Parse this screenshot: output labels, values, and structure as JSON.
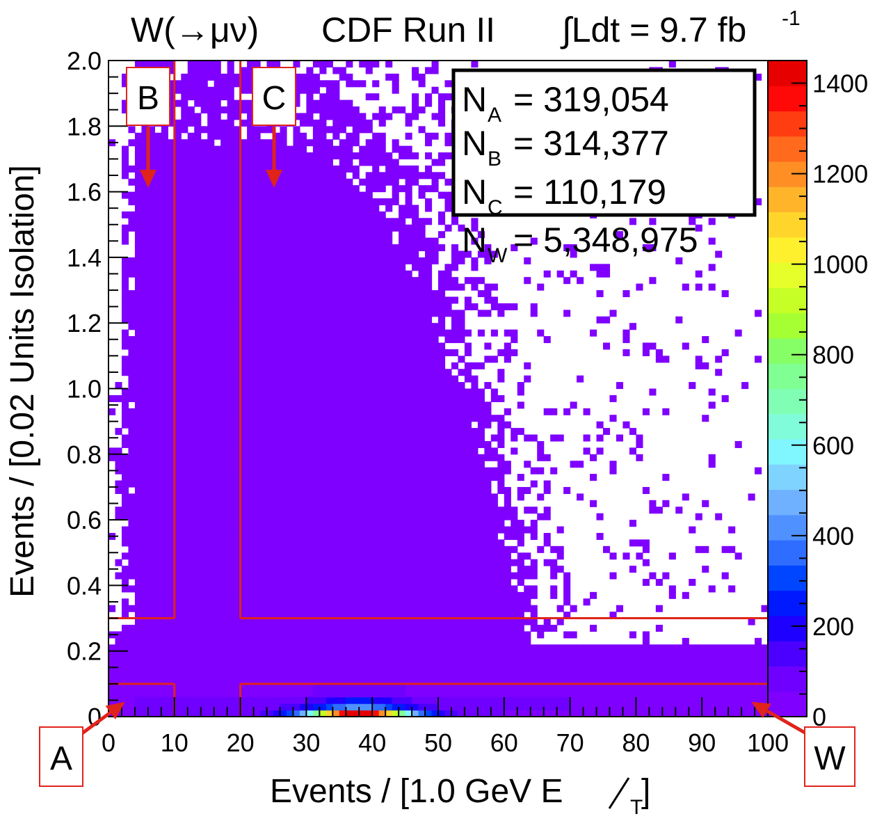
{
  "chart_data": {
    "type": "heatmap",
    "title": {
      "process": "W(→μν)",
      "experiment": "CDF Run II",
      "luminosity_lhs": "∫Ldt = 9.7 fb",
      "luminosity_exp": "-1"
    },
    "xlabel": "Events / [1.0 GeV E",
    "xlabel_sub": "T",
    "xlabel_close": "]",
    "ylabel": "Events / [0.02 Units Isolation]",
    "xlim": [
      0,
      100
    ],
    "ylim": [
      0,
      2.0
    ],
    "x_ticks": [
      {
        "value": 0,
        "label": "0"
      },
      {
        "value": 10,
        "label": "10"
      },
      {
        "value": 20,
        "label": "20"
      },
      {
        "value": 30,
        "label": "30"
      },
      {
        "value": 40,
        "label": "40"
      },
      {
        "value": 50,
        "label": "50"
      },
      {
        "value": 60,
        "label": "60"
      },
      {
        "value": 70,
        "label": "70"
      },
      {
        "value": 80,
        "label": "80"
      },
      {
        "value": 90,
        "label": "90"
      },
      {
        "value": 100,
        "label": "100"
      }
    ],
    "y_ticks": [
      {
        "value": 0,
        "label": "0"
      },
      {
        "value": 0.2,
        "label": "0.2"
      },
      {
        "value": 0.4,
        "label": "0.4"
      },
      {
        "value": 0.6,
        "label": "0.6"
      },
      {
        "value": 0.8,
        "label": "0.8"
      },
      {
        "value": 1.0,
        "label": "1.0"
      },
      {
        "value": 1.2,
        "label": "1.2"
      },
      {
        "value": 1.4,
        "label": "1.4"
      },
      {
        "value": 1.6,
        "label": "1.6"
      },
      {
        "value": 1.8,
        "label": "1.8"
      },
      {
        "value": 2.0,
        "label": "2.0"
      }
    ],
    "bin_width_x": 1.0,
    "bin_width_y": 0.02,
    "colorbar": {
      "range": [
        0,
        1450
      ],
      "ticks": [
        {
          "value": 0,
          "label": "0"
        },
        {
          "value": 200,
          "label": "200"
        },
        {
          "value": 400,
          "label": "400"
        },
        {
          "value": 600,
          "label": "600"
        },
        {
          "value": 800,
          "label": "800"
        },
        {
          "value": 1000,
          "label": "1000"
        },
        {
          "value": 1200,
          "label": "1200"
        },
        {
          "value": 1400,
          "label": "1400"
        }
      ],
      "colors": [
        "#7f00ff",
        "#6f00ff",
        "#4b00ff",
        "#1d00ff",
        "#0019ff",
        "#0045ff",
        "#2e6dff",
        "#4f92ff",
        "#6fb1ff",
        "#7fd3ff",
        "#80f6ff",
        "#80fcda",
        "#80ffb4",
        "#80ff93",
        "#86ff66",
        "#a6ff33",
        "#c6ff26",
        "#e6ff2a",
        "#fff02e",
        "#ffd52c",
        "#ffb42a",
        "#ff8f24",
        "#ff6a1c",
        "#ff3d10",
        "#ff0808",
        "#e60000"
      ]
    },
    "cut_lines": {
      "isolation_cut_low": 0.1,
      "isolation_cut_high": 0.3,
      "met_cut_low": 10,
      "met_cut_high": 20
    },
    "regions": [
      {
        "id": "A",
        "label": "A",
        "met_range": [
          0,
          10
        ],
        "iso_range": [
          0,
          0.1
        ],
        "count_label": "N",
        "count_sub": "A",
        "count": "319,054"
      },
      {
        "id": "B",
        "label": "B",
        "met_range": [
          0,
          10
        ],
        "iso_range": [
          0.3,
          2.0
        ],
        "count_label": "N",
        "count_sub": "B",
        "count": "314,377"
      },
      {
        "id": "C",
        "label": "C",
        "met_range": [
          20,
          100
        ],
        "iso_range": [
          0.3,
          2.0
        ],
        "count_label": "N",
        "count_sub": "C",
        "count": "110,179"
      },
      {
        "id": "W",
        "label": "W",
        "met_range": [
          20,
          100
        ],
        "iso_range": [
          0,
          0.1
        ],
        "count_label": "N",
        "count_sub": "W",
        "count": "5,348,975"
      }
    ],
    "signal_peak": {
      "met_range": [
        20,
        52
      ],
      "iso_range": [
        0,
        0.02
      ],
      "peak_center_met": 38,
      "peak_value": 1400
    },
    "stat_separator": " = ",
    "colors": {
      "axis": "#000000",
      "cut_line": "#e0231b",
      "arrow": "#e0231b",
      "region_box_border": "#e0231b",
      "background": "#ffffff"
    }
  }
}
